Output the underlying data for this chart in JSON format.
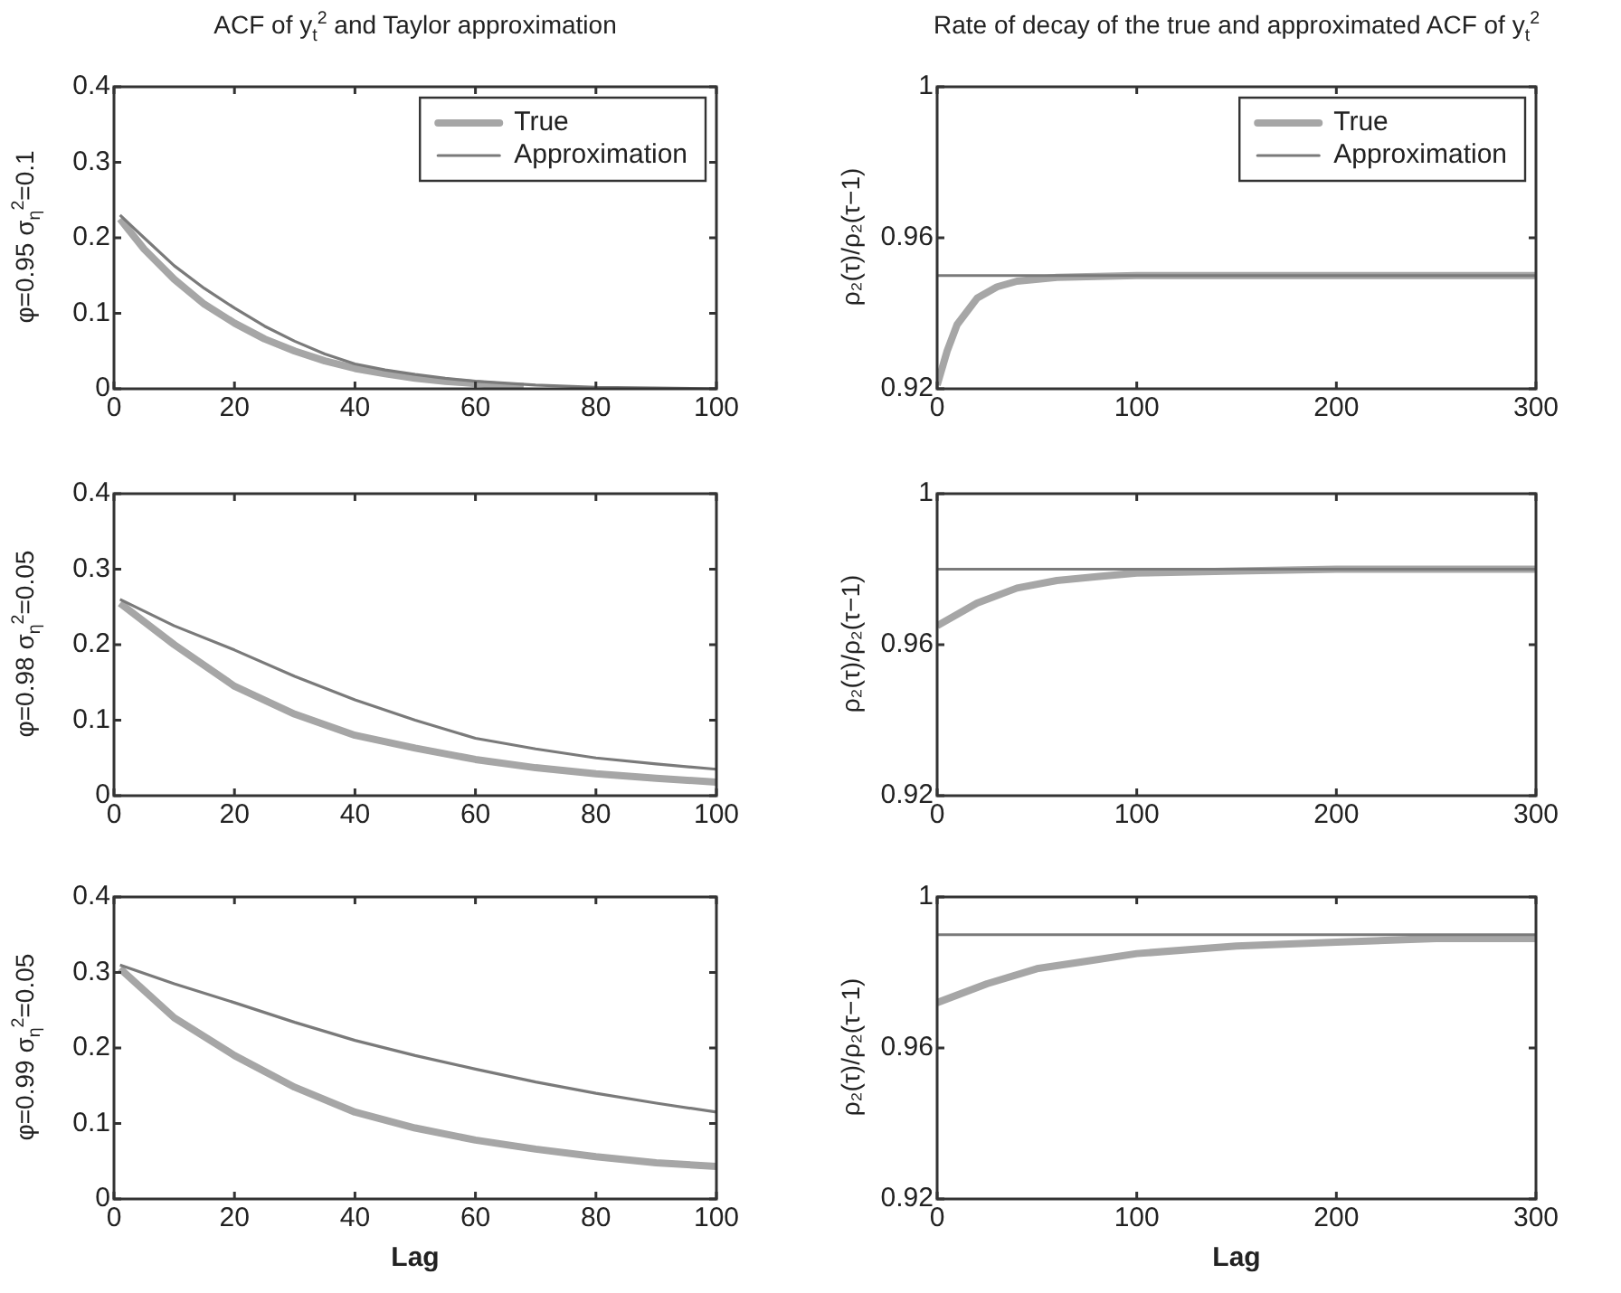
{
  "chart_data": [
    {
      "type": "line",
      "title": "ACF of y$_{t}$$^{2}$ and Taylor approximation",
      "ylabel": "φ=0.95 σ$_{η}$$^{2}$=0.1",
      "xlim": [
        0,
        100
      ],
      "ylim": [
        0,
        0.4
      ],
      "xticks": [
        0,
        20,
        40,
        60,
        80,
        100
      ],
      "yticks": [
        0,
        0.1,
        0.2,
        0.3,
        0.4
      ],
      "legend": "top right",
      "series": [
        {
          "name": "True",
          "color": "#a6a6a6",
          "x": [
            1,
            5,
            10,
            15,
            20,
            25,
            30,
            35,
            40,
            45,
            50,
            55,
            60,
            65,
            68
          ],
          "values": [
            0.225,
            0.185,
            0.145,
            0.112,
            0.087,
            0.066,
            0.05,
            0.037,
            0.027,
            0.02,
            0.014,
            0.01,
            0.007,
            0.004,
            0.003
          ]
        },
        {
          "name": "Approximation",
          "color": "#7a7a7a",
          "x": [
            1,
            5,
            10,
            15,
            20,
            25,
            30,
            35,
            40,
            45,
            50,
            55,
            60,
            70,
            80,
            90,
            100
          ],
          "values": [
            0.23,
            0.2,
            0.163,
            0.133,
            0.107,
            0.083,
            0.063,
            0.046,
            0.033,
            0.025,
            0.019,
            0.014,
            0.01,
            0.005,
            0.002,
            0.001,
            0
          ]
        }
      ]
    },
    {
      "type": "line",
      "title": "Rate of decay of the true and approximated ACF of y$_{t}$$^{2}$",
      "ylabel": "ρ₂(τ)/ρ₂(τ−1)",
      "xlim": [
        0,
        300
      ],
      "ylim": [
        0.92,
        1
      ],
      "xticks": [
        0,
        100,
        200,
        300
      ],
      "yticks": [
        0.92,
        0.96,
        1
      ],
      "legend": "top right",
      "series": [
        {
          "name": "True",
          "color": "#a6a6a6",
          "x": [
            0,
            5,
            10,
            20,
            30,
            40,
            60,
            100,
            300
          ],
          "values": [
            0.921,
            0.93,
            0.937,
            0.944,
            0.947,
            0.9485,
            0.9495,
            0.95,
            0.95
          ]
        },
        {
          "name": "Approximation",
          "color": "#7a7a7a",
          "x": [
            0,
            300
          ],
          "values": [
            0.95,
            0.95
          ]
        }
      ]
    },
    {
      "type": "line",
      "ylabel": "φ=0.98 σ$_{η}$$^{2}$=0.05",
      "xlim": [
        0,
        100
      ],
      "ylim": [
        0,
        0.4
      ],
      "xticks": [
        0,
        20,
        40,
        60,
        80,
        100
      ],
      "yticks": [
        0,
        0.1,
        0.2,
        0.3,
        0.4
      ],
      "series": [
        {
          "color": "#a6a6a6",
          "x": [
            1,
            10,
            20,
            30,
            40,
            50,
            60,
            70,
            80,
            90,
            100
          ],
          "values": [
            0.255,
            0.2,
            0.145,
            0.108,
            0.08,
            0.063,
            0.048,
            0.037,
            0.029,
            0.023,
            0.018
          ]
        },
        {
          "color": "#7a7a7a",
          "x": [
            1,
            10,
            20,
            30,
            40,
            50,
            60,
            70,
            80,
            90,
            100
          ],
          "values": [
            0.26,
            0.225,
            0.193,
            0.158,
            0.127,
            0.1,
            0.076,
            0.062,
            0.05,
            0.042,
            0.035
          ]
        }
      ]
    },
    {
      "type": "line",
      "ylabel": "ρ₂(τ)/ρ₂(τ−1)",
      "xlim": [
        0,
        300
      ],
      "ylim": [
        0.92,
        1
      ],
      "xticks": [
        0,
        100,
        200,
        300
      ],
      "yticks": [
        0.92,
        0.96,
        1
      ],
      "series": [
        {
          "color": "#a6a6a6",
          "x": [
            0,
            20,
            40,
            60,
            80,
            100,
            150,
            200,
            300
          ],
          "values": [
            0.965,
            0.971,
            0.975,
            0.977,
            0.978,
            0.979,
            0.9795,
            0.98,
            0.98
          ]
        },
        {
          "color": "#7a7a7a",
          "x": [
            0,
            300
          ],
          "values": [
            0.98,
            0.98
          ]
        }
      ]
    },
    {
      "type": "line",
      "ylabel": "φ=0.99 σ$_{η}$$^{2}$=0.05",
      "xlabel": "Lag",
      "xlim": [
        0,
        100
      ],
      "ylim": [
        0,
        0.4
      ],
      "xticks": [
        0,
        20,
        40,
        60,
        80,
        100
      ],
      "yticks": [
        0,
        0.1,
        0.2,
        0.3,
        0.4
      ],
      "series": [
        {
          "color": "#a6a6a6",
          "x": [
            1,
            10,
            20,
            30,
            40,
            50,
            60,
            70,
            80,
            90,
            100
          ],
          "values": [
            0.305,
            0.24,
            0.19,
            0.148,
            0.115,
            0.094,
            0.078,
            0.066,
            0.056,
            0.048,
            0.043
          ]
        },
        {
          "color": "#7a7a7a",
          "x": [
            1,
            10,
            20,
            30,
            40,
            50,
            60,
            70,
            80,
            90,
            100
          ],
          "values": [
            0.31,
            0.285,
            0.26,
            0.234,
            0.21,
            0.19,
            0.172,
            0.155,
            0.14,
            0.127,
            0.115
          ]
        }
      ]
    },
    {
      "type": "line",
      "ylabel": "ρ₂(τ)/ρ₂(τ−1)",
      "xlabel": "Lag",
      "xlim": [
        0,
        300
      ],
      "ylim": [
        0.92,
        1
      ],
      "xticks": [
        0,
        100,
        200,
        300
      ],
      "yticks": [
        0.92,
        0.96,
        1
      ],
      "series": [
        {
          "color": "#a6a6a6",
          "x": [
            0,
            25,
            50,
            75,
            100,
            150,
            200,
            250,
            300
          ],
          "values": [
            0.972,
            0.977,
            0.981,
            0.983,
            0.985,
            0.987,
            0.988,
            0.989,
            0.989
          ]
        },
        {
          "color": "#7a7a7a",
          "x": [
            0,
            300
          ],
          "values": [
            0.99,
            0.99
          ]
        }
      ]
    }
  ]
}
